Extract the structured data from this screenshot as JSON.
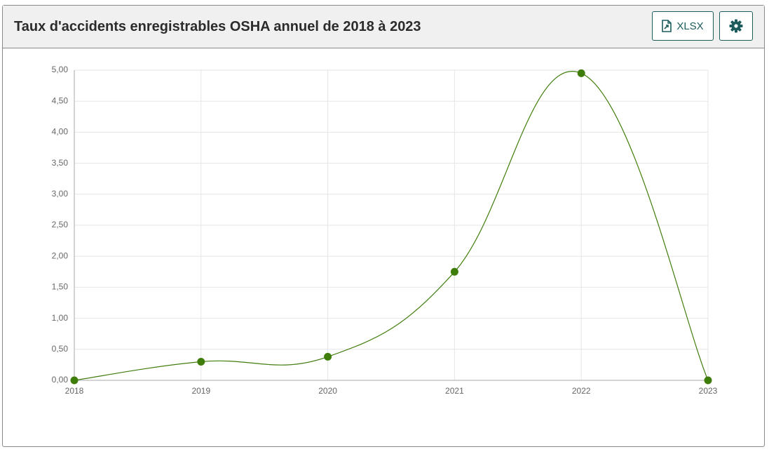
{
  "button_label": "XLSX",
  "chart_data": {
    "type": "line",
    "title": "Taux d'accidents enregistrables OSHA annuel de 2018 à 2023",
    "categories": [
      "2018",
      "2019",
      "2020",
      "2021",
      "2022",
      "2023"
    ],
    "series": [
      {
        "color": "#3f7d0b",
        "values": [
          0,
          0.3,
          0.38,
          1.75,
          4.95,
          0
        ]
      }
    ],
    "ylim": [
      0,
      5
    ],
    "yticks": [
      {
        "value": 0,
        "label": "0,00"
      },
      {
        "value": 0.5,
        "label": "0,50"
      },
      {
        "value": 1,
        "label": "1,00"
      },
      {
        "value": 1.5,
        "label": "1,50"
      },
      {
        "value": 2,
        "label": "2,00"
      },
      {
        "value": 2.5,
        "label": "2,50"
      },
      {
        "value": 3,
        "label": "3,00"
      },
      {
        "value": 3.5,
        "label": "3,50"
      },
      {
        "value": 4,
        "label": "4,00"
      },
      {
        "value": 4.5,
        "label": "4,50"
      },
      {
        "value": 5,
        "label": "5,00"
      }
    ],
    "grid": true
  }
}
